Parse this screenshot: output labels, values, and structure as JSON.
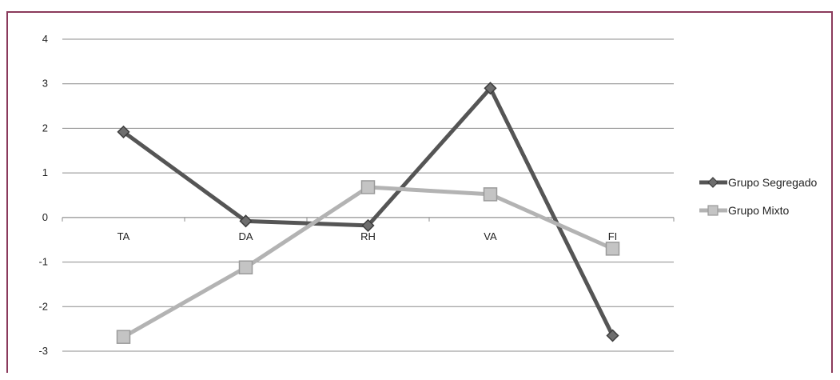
{
  "chart_data": {
    "type": "line",
    "categories": [
      "TA",
      "DA",
      "RH",
      "VA",
      "FI"
    ],
    "ylim": [
      -3,
      4
    ],
    "yticks": [
      4,
      3,
      2,
      1,
      0,
      -1,
      -2,
      -3
    ],
    "grid": true,
    "legend_position": "right",
    "series": [
      {
        "name": "Grupo Segregado",
        "values": [
          1.92,
          -0.08,
          -0.18,
          2.9,
          -2.65
        ],
        "color": "#555555",
        "marker": "diamond"
      },
      {
        "name": "Grupo Mixto",
        "values": [
          -2.68,
          -1.12,
          0.68,
          0.52,
          -0.7
        ],
        "color": "#b3b3b3",
        "marker": "square"
      }
    ]
  }
}
